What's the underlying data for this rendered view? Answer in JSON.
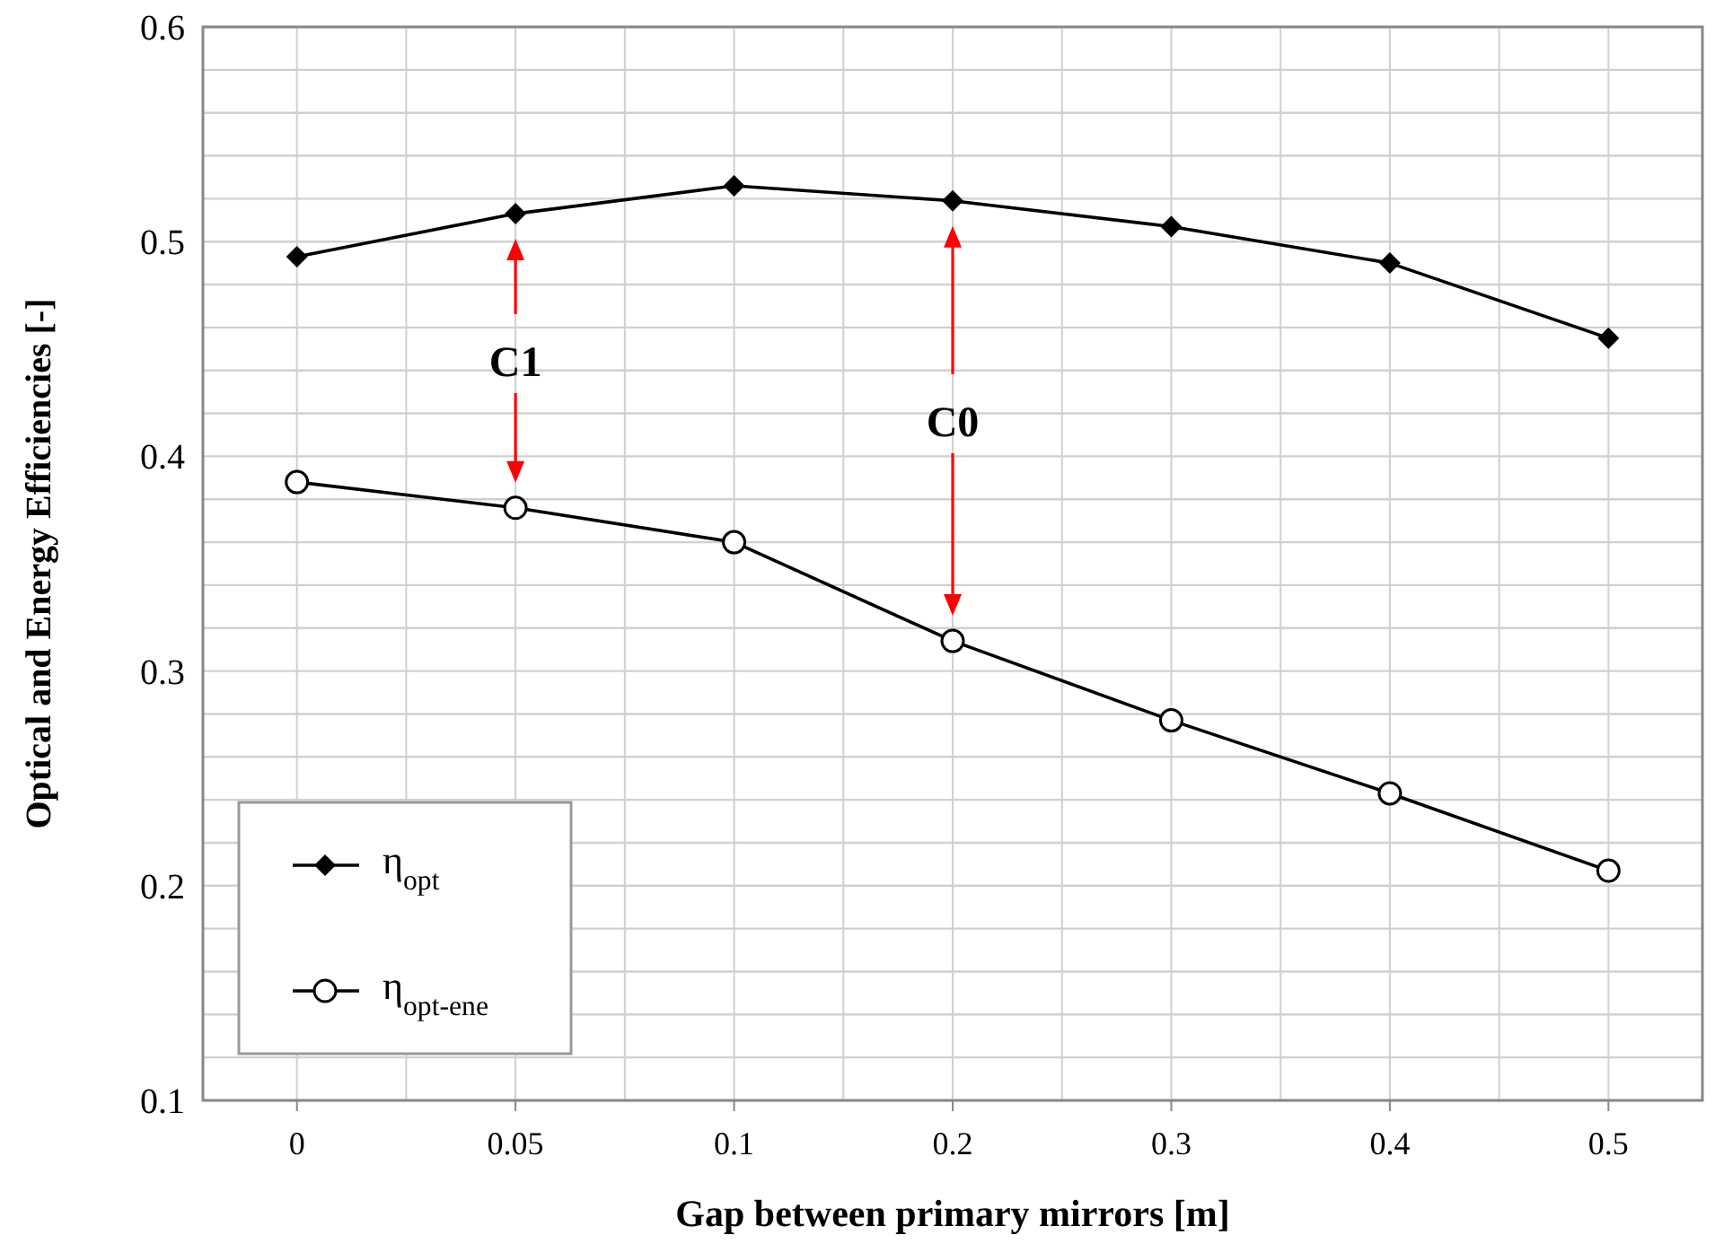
{
  "chart_data": {
    "type": "line",
    "xlabel": "Gap between primary mirrors  [m]",
    "ylabel": "Optical and Energy Efficiencies [-]",
    "categories": [
      "0",
      "0.05",
      "0.1",
      "0.2",
      "0.3",
      "0.4",
      "0.5"
    ],
    "series": [
      {
        "name": "η$_{opt}$",
        "color": "#000000",
        "marker": "diamond",
        "values": [
          0.493,
          0.513,
          0.526,
          0.519,
          0.507,
          0.49,
          0.455
        ]
      },
      {
        "name": "η$_{opt-ene}$",
        "color": "#000000",
        "marker": "circle",
        "values": [
          0.388,
          0.376,
          0.36,
          0.314,
          0.277,
          0.243,
          0.207
        ]
      }
    ],
    "ylim": [
      0.1,
      0.6
    ],
    "yticks": [
      0.1,
      {
        "value": 0.12,
        "label": null
      },
      {
        "value": 0.14,
        "label": null
      },
      {
        "value": 0.16,
        "label": null
      },
      {
        "value": 0.18,
        "label": null
      },
      0.2,
      {
        "value": 0.22,
        "label": null
      },
      {
        "value": 0.24,
        "label": null
      },
      {
        "value": 0.26,
        "label": null
      },
      {
        "value": 0.28,
        "label": null
      },
      0.3,
      {
        "value": 0.32,
        "label": null
      },
      {
        "value": 0.34,
        "label": null
      },
      {
        "value": 0.36,
        "label": null
      },
      {
        "value": 0.38,
        "label": null
      },
      0.4,
      {
        "value": 0.42,
        "label": null
      },
      {
        "value": 0.44,
        "label": null
      },
      {
        "value": 0.46,
        "label": null
      },
      {
        "value": 0.48,
        "label": null
      },
      0.5,
      {
        "value": 0.52,
        "label": null
      },
      {
        "value": 0.54,
        "label": null
      },
      {
        "value": 0.56,
        "label": null
      },
      {
        "value": 0.58,
        "label": null
      },
      0.6
    ],
    "grid": true,
    "legend": "bottom left",
    "line_style": "solid",
    "annotations": [
      "C1",
      "C0"
    ]
  }
}
